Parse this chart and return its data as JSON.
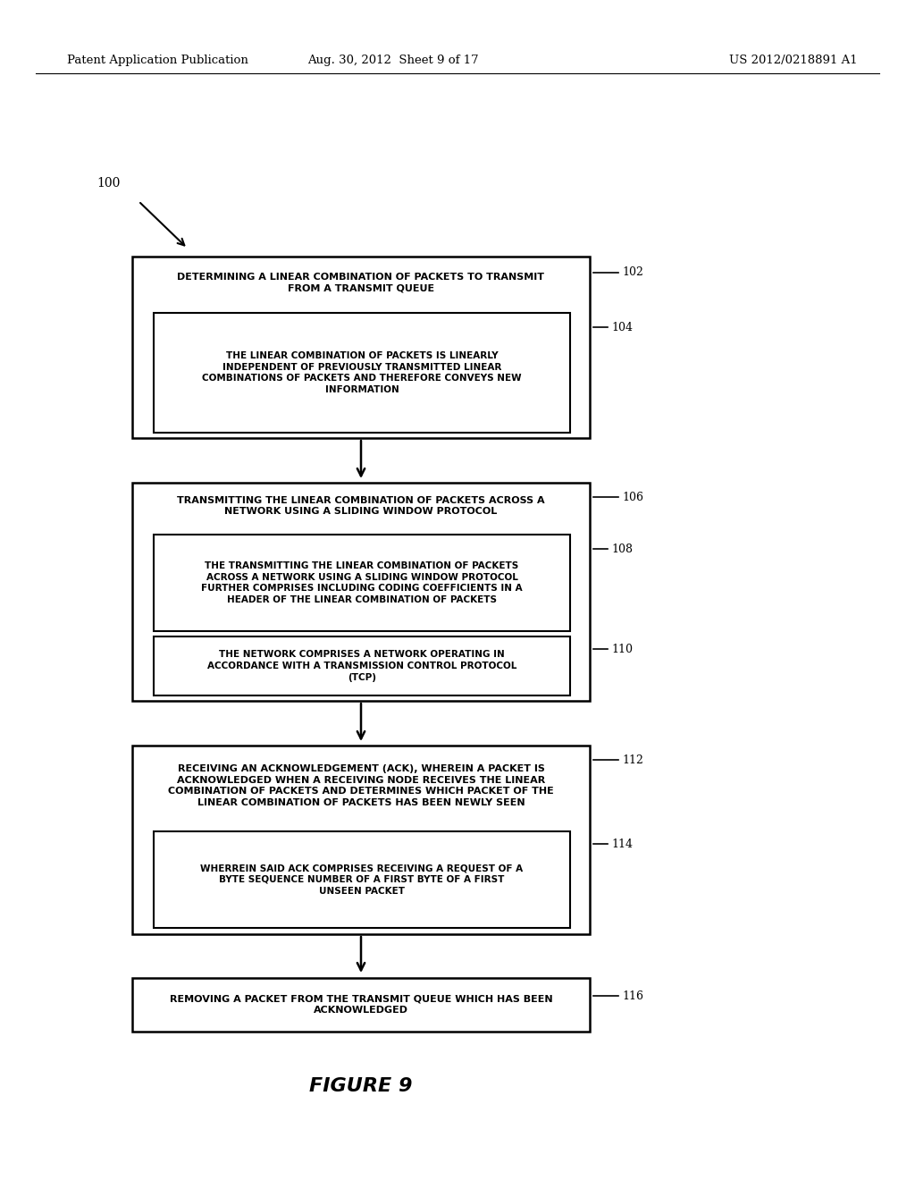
{
  "bg_color": "#ffffff",
  "header_left": "Patent Application Publication",
  "header_center": "Aug. 30, 2012  Sheet 9 of 17",
  "header_right": "US 2012/0218891 A1",
  "figure_label": "FIGURE 9",
  "label_100": "100",
  "box1_outer_text": "DETERMINING A LINEAR COMBINATION OF PACKETS TO TRANSMIT\nFROM A TRANSMIT QUEUE",
  "box1_outer_ref": "102",
  "box1_inner_text": "THE LINEAR COMBINATION OF PACKETS IS LINEARLY\nINDEPENDENT OF PREVIOUSLY TRANSMITTED LINEAR\nCOMBINATIONS OF PACKETS AND THEREFORE CONVEYS NEW\nINFORMATION",
  "box1_inner_ref": "104",
  "box2_outer_text": "TRANSMITTING THE LINEAR COMBINATION OF PACKETS ACROSS A\nNETWORK USING A SLIDING WINDOW PROTOCOL",
  "box2_outer_ref": "106",
  "box2_inner1_text": "THE TRANSMITTING THE LINEAR COMBINATION OF PACKETS\nACROSS A NETWORK USING A SLIDING WINDOW PROTOCOL\nFURTHER COMPRISES INCLUDING CODING COEFFICIENTS IN A\nHEADER OF THE LINEAR COMBINATION OF PACKETS",
  "box2_inner1_ref": "108",
  "box2_inner2_text": "THE NETWORK COMPRISES A NETWORK OPERATING IN\nACCORDANCE WITH A TRANSMISSION CONTROL PROTOCOL\n(TCP)",
  "box2_inner2_ref": "110",
  "box3_outer_text": "RECEIVING AN ACKNOWLEDGEMENT (ACK), WHEREIN A PACKET IS\nACKNOWLEDGED WHEN A RECEIVING NODE RECEIVES THE LINEAR\nCOMBINATION OF PACKETS AND DETERMINES WHICH PACKET OF THE\nLINEAR COMBINATION OF PACKETS HAS BEEN NEWLY SEEN",
  "box3_outer_ref": "112",
  "box3_inner_text": "WHERREIN SAID ACK COMPRISES RECEIVING A REQUEST OF A\nBYTE SEQUENCE NUMBER OF A FIRST BYTE OF A FIRST\nUNSEEN PACKET",
  "box3_inner_ref": "114",
  "box4_text": "REMOVING A PACKET FROM THE TRANSMIT QUEUE WHICH HAS BEEN\nACKNOWLEDGED",
  "box4_ref": "116"
}
